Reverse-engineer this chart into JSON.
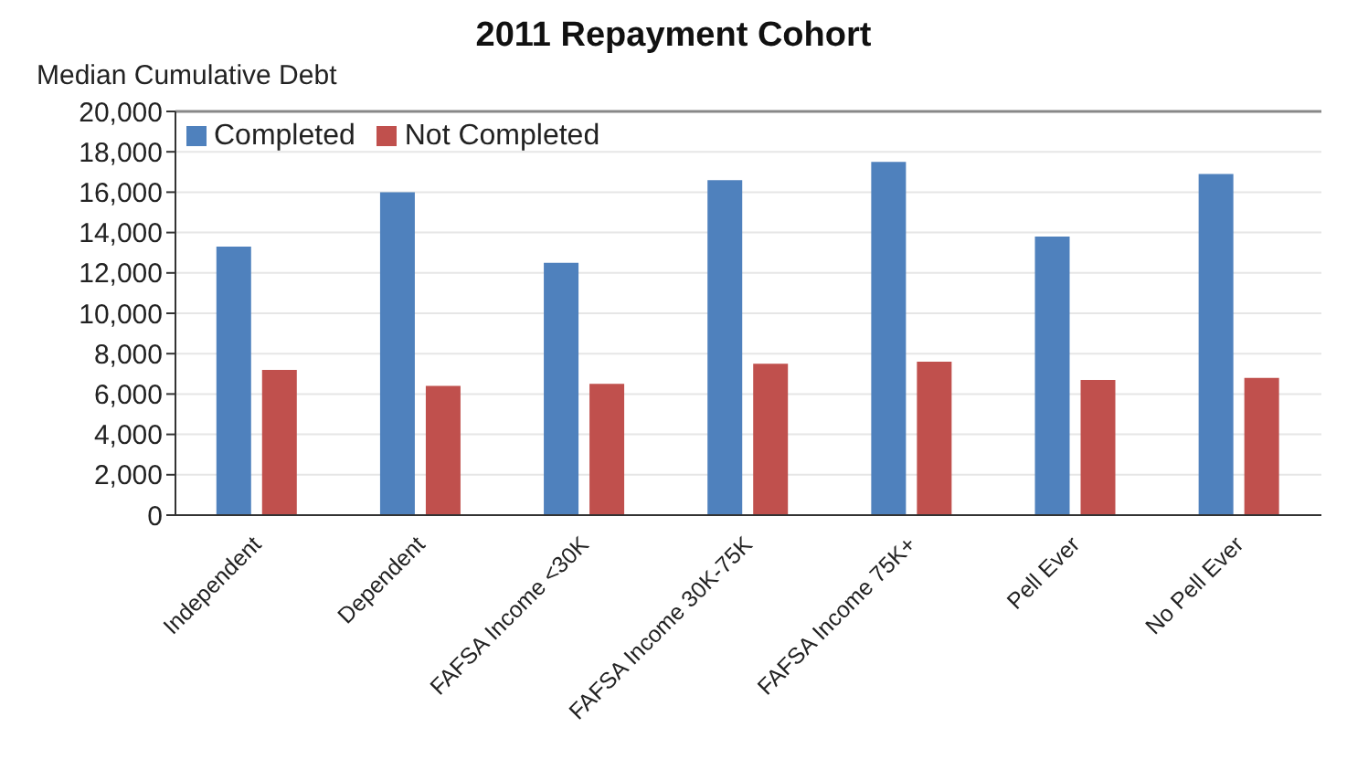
{
  "chart_data": {
    "type": "bar",
    "title": "2011 Repayment Cohort",
    "ylabel": "Median Cumulative Debt",
    "categories": [
      "Independent",
      "Dependent",
      "FAFSA Income <30K",
      "FAFSA Income 30K-75K",
      "FAFSA Income 75K+",
      "Pell Ever",
      "No Pell Ever"
    ],
    "series": [
      {
        "name": "Completed",
        "color": "#4f81bd",
        "values": [
          13300,
          16000,
          12500,
          16600,
          17500,
          13800,
          16900
        ]
      },
      {
        "name": "Not Completed",
        "color": "#c0504d",
        "values": [
          7200,
          6400,
          6500,
          7500,
          7600,
          6700,
          6800
        ]
      }
    ],
    "ylim": [
      0,
      20000
    ],
    "yticks": [
      0,
      {
        "value": 2000,
        "label": "2,000"
      },
      {
        "value": 4000,
        "label": "4,000"
      },
      {
        "value": 6000,
        "label": "6,000"
      },
      {
        "value": 8000,
        "label": "8,000"
      },
      {
        "value": 10000,
        "label": "10,000"
      },
      {
        "value": 12000,
        "label": "12,000"
      },
      {
        "value": 14000,
        "label": "14,000"
      },
      {
        "value": 16000,
        "label": "16,000"
      },
      {
        "value": 18000,
        "label": "18,000"
      },
      {
        "value": 20000,
        "label": "20,000"
      }
    ],
    "grid": "y",
    "legend": "top left"
  }
}
